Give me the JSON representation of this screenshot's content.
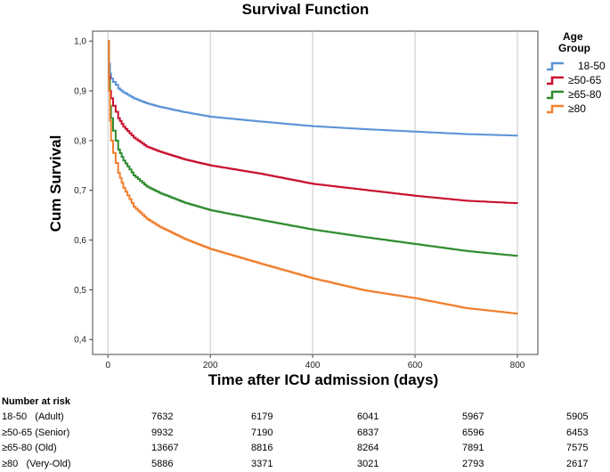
{
  "chart_data": {
    "type": "line",
    "title": "Survival Function",
    "xlabel": "Time after ICU admission (days)",
    "ylabel": "Cum Survival",
    "xlim": [
      -30,
      840
    ],
    "ylim": [
      0.37,
      1.02
    ],
    "xticks": [
      0,
      200,
      400,
      600,
      800
    ],
    "yticks": [
      0.4,
      0.5,
      0.6,
      0.7,
      0.8,
      0.9,
      1.0
    ],
    "ytick_labels": [
      "0,4",
      "0,5",
      "0,6",
      "0,7",
      "0,8",
      "0,9",
      "1,0"
    ],
    "grid": "vertical",
    "legend_title": "Age Group",
    "legend_position": "top-right",
    "series": [
      {
        "name": "18-50",
        "color": "#5b93d6",
        "x": [
          0,
          2,
          4,
          6,
          10,
          15,
          20,
          30,
          50,
          75,
          100,
          150,
          200,
          300,
          400,
          500,
          600,
          700,
          800
        ],
        "y": [
          1.0,
          0.955,
          0.935,
          0.925,
          0.918,
          0.912,
          0.905,
          0.897,
          0.885,
          0.875,
          0.868,
          0.857,
          0.848,
          0.838,
          0.829,
          0.823,
          0.818,
          0.813,
          0.81
        ]
      },
      {
        "name": "≥50-65",
        "color": "#c8102e",
        "x": [
          0,
          2,
          4,
          6,
          10,
          15,
          20,
          30,
          50,
          75,
          100,
          150,
          200,
          300,
          400,
          500,
          600,
          700,
          800
        ],
        "y": [
          1.0,
          0.93,
          0.9,
          0.885,
          0.87,
          0.858,
          0.845,
          0.828,
          0.806,
          0.788,
          0.778,
          0.762,
          0.75,
          0.733,
          0.713,
          0.701,
          0.689,
          0.679,
          0.674
        ]
      },
      {
        "name": "≥65-80",
        "color": "#2e8b2e",
        "x": [
          0,
          2,
          4,
          6,
          10,
          15,
          20,
          30,
          50,
          75,
          100,
          150,
          200,
          300,
          400,
          500,
          600,
          700,
          800
        ],
        "y": [
          1.0,
          0.92,
          0.87,
          0.845,
          0.82,
          0.8,
          0.782,
          0.76,
          0.73,
          0.708,
          0.695,
          0.675,
          0.66,
          0.64,
          0.621,
          0.606,
          0.592,
          0.578,
          0.568
        ]
      },
      {
        "name": "≥80",
        "color": "#f07f2e",
        "x": [
          0,
          2,
          4,
          6,
          10,
          15,
          20,
          30,
          50,
          75,
          100,
          150,
          200,
          300,
          400,
          500,
          600,
          700,
          800
        ],
        "y": [
          1.0,
          0.9,
          0.84,
          0.8,
          0.775,
          0.755,
          0.735,
          0.705,
          0.667,
          0.643,
          0.627,
          0.602,
          0.582,
          0.552,
          0.523,
          0.499,
          0.483,
          0.463,
          0.452
        ]
      }
    ]
  },
  "risk_table": {
    "header": "Number at risk",
    "rows": [
      {
        "label": "18-50   (Adult)",
        "values": [
          "7632",
          "6179",
          "6041",
          "5967",
          "5905"
        ]
      },
      {
        "label": "≥50-65 (Senior)",
        "values": [
          "9932",
          "7190",
          "6837",
          "6596",
          "6453"
        ]
      },
      {
        "label": "≥65-80 (Old)",
        "values": [
          "13667",
          "8816",
          "8264",
          "7891",
          "7575"
        ]
      },
      {
        "label": "≥80   (Very-Old)",
        "values": [
          "5886",
          "3371",
          "3021",
          "2793",
          "2617"
        ]
      }
    ]
  }
}
